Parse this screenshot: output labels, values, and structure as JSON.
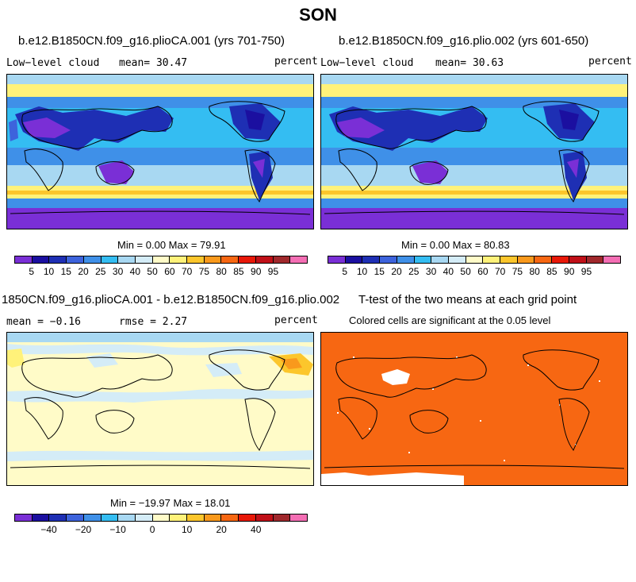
{
  "season": "SON",
  "panels": {
    "p1": {
      "title": "b.e12.B1850CN.f09_g16.plioCA.001 (yrs 701-750)",
      "variable": "Low−level cloud",
      "mean": "mean=  30.47",
      "units": "percent",
      "minmax": "Min =   0.00 Max =  79.91"
    },
    "p2": {
      "title": "b.e12.B1850CN.f09_g16.plio.002 (yrs 601-650)",
      "variable": "Low−level cloud",
      "mean": "mean=  30.63",
      "units": "percent",
      "minmax": "Min =   0.00 Max =  80.83"
    },
    "p3": {
      "title": "1850CN.f09_g16.plioCA.001 - b.e12.B1850CN.f09_g16.plio.002",
      "mean": "mean =  −0.16",
      "rmse": "rmse =   2.27",
      "units": "percent",
      "minmax": "Min = −19.97 Max =  18.01"
    },
    "p4": {
      "title": "T-test of the two means at each grid point",
      "subtitle": "Colored cells are significant at the 0.05 level"
    }
  },
  "colors": {
    "abs_scale": [
      "#7a2fd6",
      "#1b0fa0",
      "#1e2fb4",
      "#3d63dc",
      "#3f90e8",
      "#34bdf2",
      "#a8d8f2",
      "#d4ecf7",
      "#fffbc8",
      "#fff27a",
      "#fcc62c",
      "#f9991c",
      "#f76712",
      "#e81808",
      "#c01018",
      "#a0282c",
      "#f46eb4"
    ],
    "diff_scale": [
      "#7a2fd6",
      "#1b0fa0",
      "#1e2fb4",
      "#3d63dc",
      "#3f90e8",
      "#34bdf2",
      "#a8d8f2",
      "#d4ecf7",
      "#fffbc8",
      "#fff27a",
      "#fcc62c",
      "#f9991c",
      "#f76712",
      "#e81808",
      "#c01018",
      "#a0282c",
      "#f46eb4"
    ],
    "significant": "#f76712"
  },
  "chart_data": [
    {
      "type": "heatmap",
      "title": "b.e12.B1850CN.f09_g16.plioCA.001 (yrs 701-750)",
      "variable": "Low-level cloud",
      "units": "percent",
      "mean": 30.47,
      "min": 0.0,
      "max": 79.91,
      "colorbar_levels": [
        5,
        10,
        15,
        20,
        25,
        30,
        40,
        50,
        60,
        70,
        75,
        80,
        85,
        90,
        95
      ]
    },
    {
      "type": "heatmap",
      "title": "b.e12.B1850CN.f09_g16.plio.002 (yrs 601-650)",
      "variable": "Low-level cloud",
      "units": "percent",
      "mean": 30.63,
      "min": 0.0,
      "max": 80.83,
      "colorbar_levels": [
        5,
        10,
        15,
        20,
        25,
        30,
        40,
        50,
        60,
        70,
        75,
        80,
        85,
        90,
        95
      ]
    },
    {
      "type": "heatmap",
      "title": "1850CN.f09_g16.plioCA.001 - b.e12.B1850CN.f09_g16.plio.002",
      "units": "percent",
      "mean": -0.16,
      "rmse": 2.27,
      "min": -19.97,
      "max": 18.01,
      "colorbar_tick_labels": [
        "-40",
        "-20",
        "-10",
        "0",
        "10",
        "20",
        "40"
      ]
    },
    {
      "type": "heatmap",
      "title": "T-test of the two means at each grid point",
      "subtitle": "Colored cells are significant at the 0.05 level",
      "significance_level": 0.05
    }
  ],
  "colorbar_labels": {
    "abs": [
      "5",
      "10",
      "15",
      "20",
      "25",
      "30",
      "40",
      "50",
      "60",
      "70",
      "75",
      "80",
      "85",
      "90",
      "95"
    ],
    "diff": [
      "−40",
      "−20",
      "−10",
      "0",
      "10",
      "20",
      "40"
    ]
  }
}
